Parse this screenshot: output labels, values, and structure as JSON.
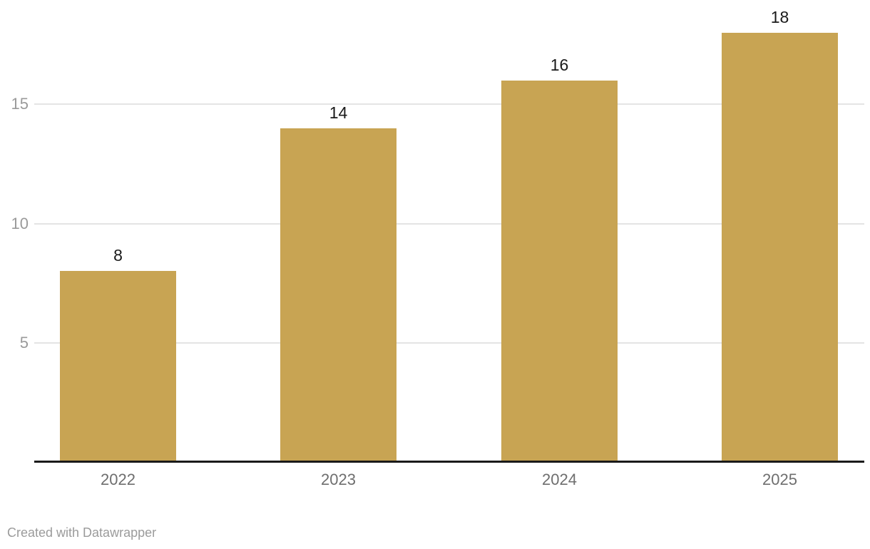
{
  "chart_data": {
    "type": "bar",
    "categories": [
      "2022",
      "2023",
      "2024",
      "2025"
    ],
    "values": [
      8,
      14,
      16,
      18
    ],
    "title": "",
    "xlabel": "",
    "ylabel": "",
    "ylim": [
      0,
      19.4
    ],
    "yticks": [
      5,
      10,
      15
    ],
    "grid": "horizontal",
    "legend": "none",
    "bar_color": "#c8a453"
  },
  "colors": {
    "background": "#ffffff",
    "bar": "#c8a453",
    "gridline": "#e4e4e4",
    "axis_line": "#1a1a1a",
    "y_tick_text": "#9a9a9a",
    "x_label_text": "#6e6e6e",
    "value_label_text": "#1a1a1a",
    "credit_text": "#9b9b9b"
  },
  "footer": {
    "credit": "Created with Datawrapper"
  }
}
